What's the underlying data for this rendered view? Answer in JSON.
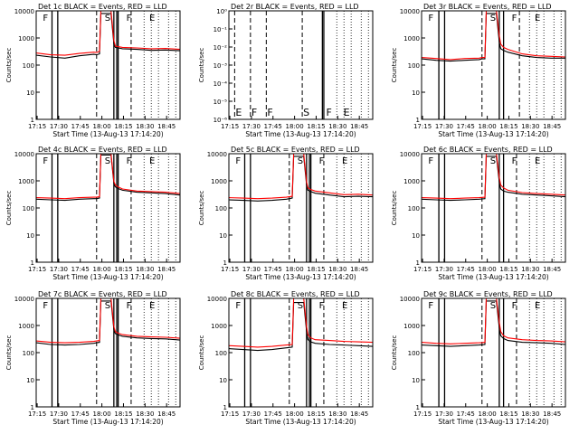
{
  "page": {
    "background": "#ffffff",
    "colors": {
      "events": "#000000",
      "lld": "#ff0000",
      "axis": "#000000"
    }
  },
  "shared": {
    "title_suffix": "BLACK = Events, RED = LLD",
    "xlabel": "Start Time (13-Aug-13 17:14:20)",
    "ylabel": "Counts/sec",
    "x_tick_labels": [
      "17:15",
      "17:30",
      "17:45",
      "18:00",
      "18:15",
      "18:30",
      "18:45"
    ],
    "x_tick_minutes": [
      0.67,
      15.67,
      30.67,
      45.67,
      60.67,
      75.67,
      90.67
    ],
    "x_range_minutes": [
      0,
      100
    ],
    "y_tick_labels": [
      "1",
      "10",
      "100",
      "1000",
      "10000"
    ],
    "y_tick_labels_det2": [
      "10⁰",
      "10⁻¹",
      "10⁻²",
      "10⁻³",
      "10⁻⁴",
      "10⁻⁵",
      "10⁻⁶"
    ]
  },
  "chart_data": [
    {
      "type": "line",
      "id": "det1",
      "title": "Det 1c",
      "ylim": [
        1,
        10000
      ],
      "yscale": "log",
      "flag_letters": [
        {
          "t": 4,
          "label": "F"
        },
        {
          "t": 47,
          "label": "S"
        },
        {
          "t": 62,
          "label": "F"
        },
        {
          "t": 78,
          "label": "E"
        }
      ],
      "solid_lines": [
        11,
        15,
        54,
        56,
        57
      ],
      "dashed_lines": [
        42,
        66
      ],
      "dotted_lines": [
        75,
        80,
        85,
        92,
        97
      ],
      "series": [
        {
          "name": "BLACK = Events",
          "color": "#000000",
          "x": [
            0,
            10,
            20,
            30,
            40,
            42,
            44,
            45,
            52,
            54,
            55,
            57,
            60,
            70,
            80,
            90,
            100
          ],
          "y": [
            230,
            200,
            180,
            220,
            250,
            240,
            260,
            8000,
            8000,
            600,
            450,
            430,
            400,
            380,
            350,
            360,
            340
          ]
        },
        {
          "name": "RED = LLD",
          "color": "#ff0000",
          "x": [
            0,
            10,
            20,
            30,
            40,
            42,
            44,
            45,
            52,
            54,
            55,
            57,
            60,
            70,
            80,
            90,
            100
          ],
          "y": [
            280,
            240,
            230,
            270,
            300,
            290,
            320,
            10000,
            10000,
            800,
            500,
            480,
            450,
            430,
            400,
            410,
            380
          ]
        }
      ]
    },
    {
      "type": "line",
      "id": "det2",
      "title": "Det 2r",
      "ylim": [
        1e-06,
        1
      ],
      "yscale": "log",
      "flag_letters": [
        {
          "t": 4,
          "label": "E"
        },
        {
          "t": 15,
          "label": "F"
        },
        {
          "t": 26,
          "label": "F"
        },
        {
          "t": 51,
          "label": "S"
        },
        {
          "t": 67,
          "label": "F"
        },
        {
          "t": 79,
          "label": "E"
        }
      ],
      "solid_lines": [
        65,
        66
      ],
      "dashed_lines": [
        4,
        15,
        26,
        51
      ],
      "dotted_lines": [
        75,
        80,
        85,
        92,
        97
      ],
      "series": []
    },
    {
      "type": "line",
      "id": "det3",
      "title": "Det 3r",
      "ylim": [
        1,
        10000
      ],
      "yscale": "log",
      "flag_letters": [
        {
          "t": 4,
          "label": "F"
        },
        {
          "t": 47,
          "label": "S"
        },
        {
          "t": 62,
          "label": "F"
        },
        {
          "t": 78,
          "label": "E"
        }
      ],
      "solid_lines": [
        12,
        16,
        54,
        57
      ],
      "dashed_lines": [
        42,
        68
      ],
      "dotted_lines": [
        75,
        80,
        85,
        92,
        97
      ],
      "series": [
        {
          "name": "BLACK = Events",
          "color": "#000000",
          "x": [
            0,
            10,
            20,
            30,
            40,
            42,
            44,
            45,
            52,
            54,
            55,
            57,
            60,
            70,
            80,
            90,
            100
          ],
          "y": [
            170,
            150,
            140,
            150,
            160,
            170,
            170,
            8000,
            8000,
            700,
            400,
            350,
            300,
            220,
            190,
            180,
            180
          ]
        },
        {
          "name": "RED = LLD",
          "color": "#ff0000",
          "x": [
            0,
            10,
            20,
            30,
            40,
            42,
            44,
            45,
            52,
            54,
            55,
            57,
            60,
            70,
            80,
            90,
            100
          ],
          "y": [
            190,
            175,
            160,
            175,
            180,
            190,
            190,
            10000,
            10000,
            1200,
            600,
            450,
            380,
            260,
            220,
            210,
            200
          ]
        }
      ]
    },
    {
      "type": "line",
      "id": "det4",
      "title": "Det 4c",
      "ylim": [
        1,
        10000
      ],
      "yscale": "log",
      "flag_letters": [
        {
          "t": 4,
          "label": "F"
        },
        {
          "t": 47,
          "label": "S"
        },
        {
          "t": 62,
          "label": "F"
        },
        {
          "t": 78,
          "label": "E"
        }
      ],
      "solid_lines": [
        11,
        15,
        54,
        56,
        57
      ],
      "dashed_lines": [
        42,
        66
      ],
      "dotted_lines": [
        75,
        80,
        85,
        92,
        97
      ],
      "series": [
        {
          "name": "BLACK = Events",
          "color": "#000000",
          "x": [
            0,
            10,
            20,
            30,
            40,
            42,
            44,
            45,
            52,
            54,
            55,
            57,
            60,
            70,
            80,
            90,
            100
          ],
          "y": [
            210,
            200,
            190,
            210,
            220,
            220,
            230,
            9000,
            9000,
            800,
            600,
            520,
            450,
            380,
            360,
            340,
            300
          ]
        },
        {
          "name": "RED = LLD",
          "color": "#ff0000",
          "x": [
            0,
            10,
            20,
            30,
            40,
            42,
            44,
            45,
            52,
            54,
            55,
            57,
            60,
            70,
            80,
            90,
            100
          ],
          "y": [
            240,
            230,
            220,
            240,
            250,
            250,
            260,
            10000,
            10000,
            950,
            700,
            600,
            500,
            420,
            400,
            380,
            340
          ]
        }
      ]
    },
    {
      "type": "line",
      "id": "det5",
      "title": "Det 5c",
      "ylim": [
        1,
        10000
      ],
      "yscale": "log",
      "flag_letters": [
        {
          "t": 4,
          "label": "F"
        },
        {
          "t": 47,
          "label": "S"
        },
        {
          "t": 62,
          "label": "F"
        },
        {
          "t": 78,
          "label": "E"
        }
      ],
      "solid_lines": [
        11,
        15,
        54,
        56,
        57
      ],
      "dashed_lines": [
        42,
        66
      ],
      "dotted_lines": [
        75,
        80,
        85,
        92,
        97
      ],
      "series": [
        {
          "name": "BLACK = Events",
          "color": "#000000",
          "x": [
            0,
            10,
            20,
            30,
            40,
            42,
            44,
            45,
            52,
            54,
            55,
            57,
            60,
            70,
            80,
            90,
            100
          ],
          "y": [
            200,
            190,
            180,
            190,
            210,
            220,
            230,
            8000,
            8000,
            700,
            450,
            400,
            350,
            300,
            260,
            270,
            260
          ]
        },
        {
          "name": "RED = LLD",
          "color": "#ff0000",
          "x": [
            0,
            10,
            20,
            30,
            40,
            42,
            44,
            45,
            52,
            54,
            55,
            57,
            60,
            70,
            80,
            90,
            100
          ],
          "y": [
            240,
            230,
            220,
            230,
            250,
            260,
            270,
            10000,
            10000,
            900,
            550,
            480,
            420,
            360,
            310,
            320,
            300
          ]
        }
      ]
    },
    {
      "type": "line",
      "id": "det6",
      "title": "Det 6c",
      "ylim": [
        1,
        10000
      ],
      "yscale": "log",
      "flag_letters": [
        {
          "t": 4,
          "label": "F"
        },
        {
          "t": 47,
          "label": "S"
        },
        {
          "t": 62,
          "label": "F"
        },
        {
          "t": 78,
          "label": "E"
        }
      ],
      "solid_lines": [
        12,
        16,
        54,
        57
      ],
      "dashed_lines": [
        42,
        66
      ],
      "dotted_lines": [
        75,
        80,
        85,
        92,
        97
      ],
      "series": [
        {
          "name": "BLACK = Events",
          "color": "#000000",
          "x": [
            0,
            10,
            20,
            30,
            40,
            42,
            44,
            45,
            52,
            54,
            55,
            57,
            60,
            70,
            80,
            90,
            100
          ],
          "y": [
            210,
            200,
            190,
            200,
            210,
            215,
            220,
            8000,
            8000,
            900,
            500,
            420,
            380,
            320,
            300,
            280,
            260
          ]
        },
        {
          "name": "RED = LLD",
          "color": "#ff0000",
          "x": [
            0,
            10,
            20,
            30,
            40,
            42,
            44,
            45,
            52,
            54,
            55,
            57,
            60,
            70,
            80,
            90,
            100
          ],
          "y": [
            240,
            230,
            220,
            230,
            240,
            245,
            250,
            10000,
            10000,
            1300,
            700,
            550,
            450,
            370,
            340,
            320,
            300
          ]
        }
      ]
    },
    {
      "type": "line",
      "id": "det7",
      "title": "Det 7c",
      "ylim": [
        1,
        10000
      ],
      "yscale": "log",
      "flag_letters": [
        {
          "t": 4,
          "label": "F"
        },
        {
          "t": 47,
          "label": "S"
        },
        {
          "t": 62,
          "label": "F"
        },
        {
          "t": 78,
          "label": "E"
        }
      ],
      "solid_lines": [
        11,
        15,
        54,
        56,
        57
      ],
      "dashed_lines": [
        42,
        66
      ],
      "dotted_lines": [
        75,
        80,
        85,
        92,
        97
      ],
      "series": [
        {
          "name": "BLACK = Events",
          "color": "#000000",
          "x": [
            0,
            10,
            20,
            30,
            40,
            42,
            44,
            45,
            52,
            54,
            55,
            57,
            60,
            70,
            80,
            90,
            100
          ],
          "y": [
            230,
            200,
            190,
            200,
            220,
            230,
            240,
            8000,
            8000,
            700,
            500,
            450,
            400,
            350,
            330,
            320,
            290
          ]
        },
        {
          "name": "RED = LLD",
          "color": "#ff0000",
          "x": [
            0,
            10,
            20,
            30,
            40,
            42,
            44,
            45,
            52,
            54,
            55,
            57,
            60,
            70,
            80,
            90,
            100
          ],
          "y": [
            270,
            240,
            230,
            240,
            260,
            270,
            280,
            10000,
            10000,
            900,
            600,
            520,
            460,
            400,
            380,
            370,
            340
          ]
        }
      ]
    },
    {
      "type": "line",
      "id": "det8",
      "title": "Det 8c",
      "ylim": [
        1,
        10000
      ],
      "yscale": "log",
      "flag_letters": [
        {
          "t": 4,
          "label": "F"
        },
        {
          "t": 47,
          "label": "S"
        },
        {
          "t": 62,
          "label": "F"
        },
        {
          "t": 78,
          "label": "E"
        }
      ],
      "solid_lines": [
        11,
        15,
        54,
        56,
        57
      ],
      "dashed_lines": [
        42,
        66
      ],
      "dotted_lines": [
        75,
        80,
        85,
        92,
        97
      ],
      "series": [
        {
          "name": "BLACK = Events",
          "color": "#000000",
          "x": [
            0,
            10,
            20,
            30,
            40,
            42,
            44,
            45,
            52,
            54,
            55,
            57,
            60,
            70,
            80,
            90,
            100
          ],
          "y": [
            140,
            130,
            120,
            130,
            150,
            155,
            160,
            7000,
            7000,
            600,
            300,
            250,
            220,
            200,
            190,
            180,
            170
          ]
        },
        {
          "name": "RED = LLD",
          "color": "#ff0000",
          "x": [
            0,
            10,
            20,
            30,
            40,
            42,
            44,
            45,
            52,
            54,
            55,
            57,
            60,
            70,
            80,
            90,
            100
          ],
          "y": [
            180,
            170,
            160,
            170,
            190,
            195,
            200,
            10000,
            10000,
            900,
            450,
            350,
            300,
            280,
            260,
            250,
            240
          ]
        }
      ]
    },
    {
      "type": "line",
      "id": "det9",
      "title": "Det 9c",
      "ylim": [
        1,
        10000
      ],
      "yscale": "log",
      "flag_letters": [
        {
          "t": 4,
          "label": "F"
        },
        {
          "t": 47,
          "label": "S"
        },
        {
          "t": 62,
          "label": "F"
        },
        {
          "t": 78,
          "label": "E"
        }
      ],
      "solid_lines": [
        12,
        16,
        54,
        57
      ],
      "dashed_lines": [
        42,
        66
      ],
      "dotted_lines": [
        75,
        80,
        85,
        92,
        97
      ],
      "series": [
        {
          "name": "BLACK = Events",
          "color": "#000000",
          "x": [
            0,
            10,
            20,
            30,
            40,
            42,
            44,
            45,
            52,
            54,
            55,
            57,
            60,
            70,
            80,
            90,
            100
          ],
          "y": [
            190,
            180,
            170,
            180,
            190,
            195,
            200,
            8000,
            8000,
            800,
            420,
            330,
            280,
            240,
            230,
            220,
            200
          ]
        },
        {
          "name": "RED = LLD",
          "color": "#ff0000",
          "x": [
            0,
            10,
            20,
            30,
            40,
            42,
            44,
            45,
            52,
            54,
            55,
            57,
            60,
            70,
            80,
            90,
            100
          ],
          "y": [
            240,
            220,
            210,
            220,
            230,
            235,
            240,
            10000,
            10000,
            1300,
            600,
            420,
            350,
            300,
            280,
            270,
            250
          ]
        }
      ]
    }
  ]
}
